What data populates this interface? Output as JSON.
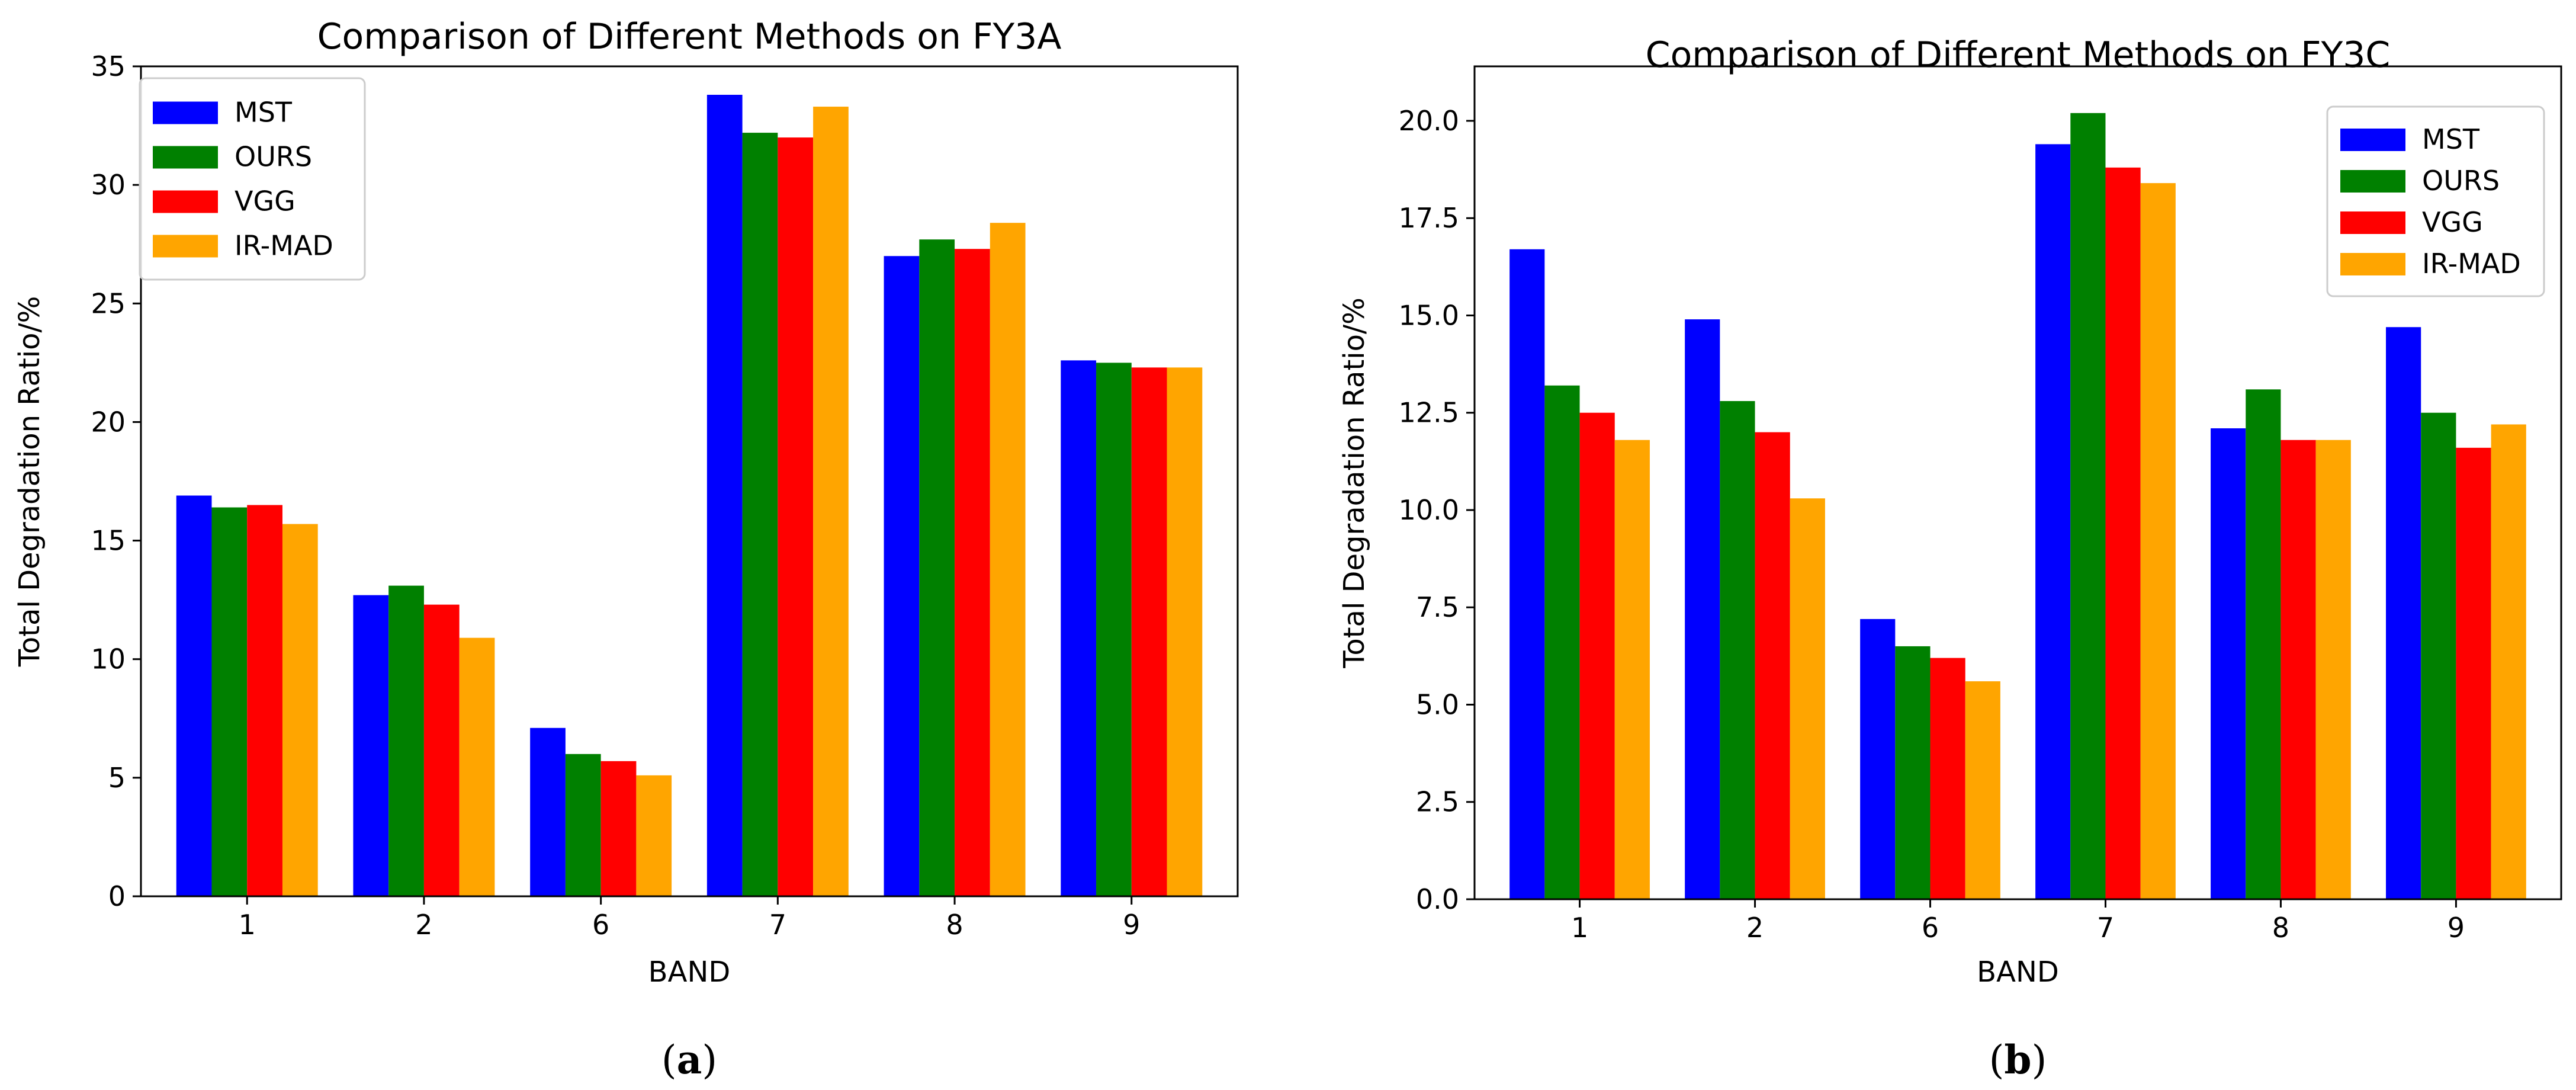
{
  "chart_data": [
    {
      "type": "bar",
      "title": "Comparison of Different Methods on FY3A",
      "xlabel": "BAND",
      "ylabel": "Total Degradation Ratio/%",
      "categories": [
        "1",
        "2",
        "6",
        "7",
        "8",
        "9"
      ],
      "ylim": [
        0,
        35
      ],
      "yticks": [
        0,
        5,
        10,
        15,
        20,
        25,
        30,
        35
      ],
      "ytick_labels": [
        "0",
        "5",
        "10",
        "15",
        "20",
        "25",
        "30",
        "35"
      ],
      "legend_position": "top-left",
      "grid": false,
      "caption_prefix": "(",
      "caption_letter": "a",
      "caption_suffix": ")",
      "series": [
        {
          "name": "MST",
          "color": "#0000ff",
          "values": [
            16.9,
            12.7,
            7.1,
            33.8,
            27.0,
            22.6
          ]
        },
        {
          "name": "OURS",
          "color": "#008000",
          "values": [
            16.4,
            13.1,
            6.0,
            32.2,
            27.7,
            22.5
          ]
        },
        {
          "name": "VGG",
          "color": "#ff0000",
          "values": [
            16.5,
            12.3,
            5.7,
            32.0,
            27.3,
            22.3
          ]
        },
        {
          "name": "IR-MAD",
          "color": "#ffa500",
          "values": [
            15.7,
            10.9,
            5.1,
            33.3,
            28.4,
            22.3
          ]
        }
      ]
    },
    {
      "type": "bar",
      "title": "Comparison of Different Methods on FY3C",
      "xlabel": "BAND",
      "ylabel": "Total Degradation Ratio/%",
      "categories": [
        "1",
        "2",
        "6",
        "7",
        "8",
        "9"
      ],
      "ylim": [
        0,
        21.4
      ],
      "yticks": [
        0,
        2.5,
        5,
        7.5,
        10,
        12.5,
        15,
        17.5,
        20
      ],
      "ytick_labels": [
        "0.0",
        "2.5",
        "5.0",
        "7.5",
        "10.0",
        "12.5",
        "15.0",
        "17.5",
        "20.0"
      ],
      "legend_position": "top-right",
      "grid": false,
      "caption_prefix": "(",
      "caption_letter": "b",
      "caption_suffix": ")",
      "series": [
        {
          "name": "MST",
          "color": "#0000ff",
          "values": [
            16.7,
            14.9,
            7.2,
            19.4,
            12.1,
            14.7
          ]
        },
        {
          "name": "OURS",
          "color": "#008000",
          "values": [
            13.2,
            12.8,
            6.5,
            20.2,
            13.1,
            12.5
          ]
        },
        {
          "name": "VGG",
          "color": "#ff0000",
          "values": [
            12.5,
            12.0,
            6.2,
            18.8,
            11.8,
            11.6
          ]
        },
        {
          "name": "IR-MAD",
          "color": "#ffa500",
          "values": [
            11.8,
            10.3,
            5.6,
            18.4,
            11.8,
            12.2
          ]
        }
      ]
    }
  ]
}
